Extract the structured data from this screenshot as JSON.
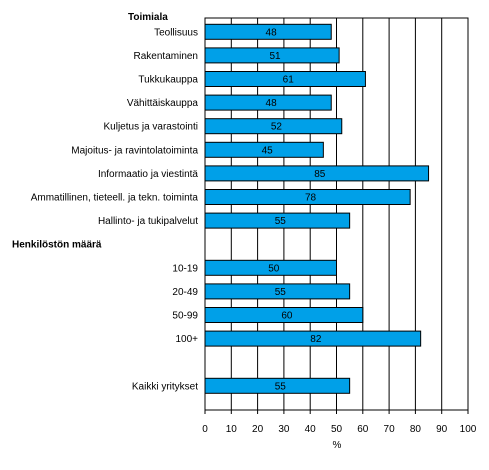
{
  "chart_data": {
    "type": "bar",
    "orientation": "horizontal",
    "xlabel": "%",
    "xlim": [
      0,
      100
    ],
    "xticks": [
      "0",
      "10",
      "20",
      "30",
      "40",
      "50",
      "60",
      "70",
      "80",
      "90",
      "100"
    ],
    "grid": "vertical",
    "bar_color": "#00A0E8",
    "groups": [
      {
        "heading": "Toimiala",
        "categories": [
          "Teollisuus",
          "Rakentaminen",
          "Tukkukauppa",
          "Vähittäiskauppa",
          "Kuljetus ja varastointi",
          "Majoitus- ja ravintolatoiminta",
          "Informaatio ja viestintä",
          "Ammatillinen, tieteell. ja tekn. toiminta",
          "Hallinto- ja tukipalvelut"
        ],
        "values": [
          48,
          51,
          61,
          48,
          52,
          45,
          85,
          78,
          55
        ]
      },
      {
        "heading": "Henkilöstön määrä",
        "categories": [
          "10-19",
          "20-49",
          "50-99",
          "100+"
        ],
        "values": [
          50,
          55,
          60,
          82
        ]
      },
      {
        "heading": "",
        "categories": [
          "Kaikki yritykset"
        ],
        "values": [
          55
        ]
      }
    ]
  }
}
